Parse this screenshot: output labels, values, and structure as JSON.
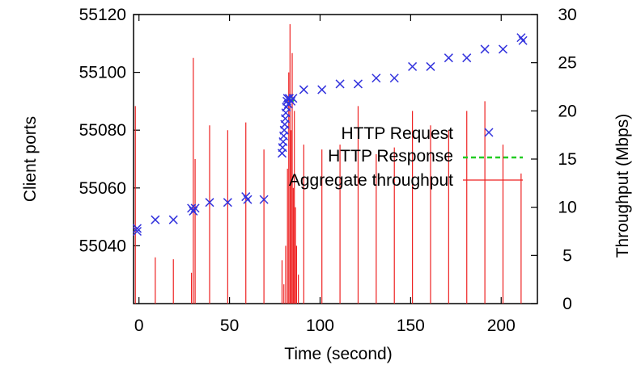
{
  "chart_data": {
    "type": "scatter+line",
    "title": "",
    "xlabel": "Time (second)",
    "ylabel_left": "Client ports",
    "ylabel_right": "Throughput (Mbps)",
    "xlim": [
      -3,
      220
    ],
    "ylim_left": [
      55020,
      55120
    ],
    "ylim_right": [
      0,
      30
    ],
    "x_ticks": [
      0,
      50,
      100,
      150,
      200
    ],
    "y_left_ticks": [
      55040,
      55060,
      55080,
      55100,
      55120
    ],
    "y_right_ticks": [
      0,
      5,
      10,
      15,
      20,
      25,
      30
    ],
    "legend_position": "top-right",
    "colors": {
      "request": "#3333dd",
      "response": "#22cc22",
      "throughput": "#ee2222"
    },
    "series": [
      {
        "name": "HTTP Request",
        "kind": "scatter",
        "axis": "left",
        "points": [
          [
            -1,
            55046
          ],
          [
            -1,
            55045
          ],
          [
            9,
            55049
          ],
          [
            19,
            55049
          ],
          [
            29,
            55053
          ],
          [
            30,
            55052
          ],
          [
            31,
            55053
          ],
          [
            39,
            55055
          ],
          [
            49,
            55055
          ],
          [
            59,
            55057
          ],
          [
            60,
            55056
          ],
          [
            69,
            55056
          ],
          [
            79,
            55072
          ],
          [
            79.3,
            55074
          ],
          [
            79.6,
            55076
          ],
          [
            79.9,
            55078
          ],
          [
            80.2,
            55080
          ],
          [
            80.5,
            55082
          ],
          [
            80.8,
            55084
          ],
          [
            81.1,
            55086
          ],
          [
            81.4,
            55088
          ],
          [
            81.7,
            55090
          ],
          [
            82,
            55091
          ],
          [
            82.5,
            55089
          ],
          [
            83,
            55091
          ],
          [
            84,
            55090
          ],
          [
            85,
            55091
          ],
          [
            91,
            55094
          ],
          [
            101,
            55094
          ],
          [
            111,
            55096
          ],
          [
            121,
            55096
          ],
          [
            131,
            55098
          ],
          [
            141,
            55098
          ],
          [
            151,
            55102
          ],
          [
            161,
            55102
          ],
          [
            171,
            55105
          ],
          [
            181,
            55105
          ],
          [
            191,
            55108
          ],
          [
            201,
            55108
          ],
          [
            211,
            55112
          ],
          [
            212,
            55111
          ]
        ]
      },
      {
        "name": "HTTP Response",
        "kind": "dashed-line",
        "axis": "left",
        "points": [
          [
            82.5,
            55089
          ],
          [
            83.5,
            55090
          ],
          [
            84.5,
            55091
          ],
          [
            85.5,
            55090
          ]
        ]
      },
      {
        "name": "Aggregate throughput",
        "kind": "spikes",
        "axis": "right",
        "points": [
          [
            -2,
            20.5
          ],
          [
            9,
            4.8
          ],
          [
            19,
            4.6
          ],
          [
            29,
            3.2
          ],
          [
            30,
            25.5
          ],
          [
            31,
            15
          ],
          [
            39,
            18.5
          ],
          [
            49,
            18
          ],
          [
            59,
            18.8
          ],
          [
            69,
            16
          ],
          [
            79,
            4.5
          ],
          [
            80,
            2
          ],
          [
            81,
            6
          ],
          [
            82,
            14
          ],
          [
            82.7,
            24
          ],
          [
            83.4,
            29
          ],
          [
            84,
            18
          ],
          [
            84.6,
            26
          ],
          [
            85.2,
            12
          ],
          [
            85.8,
            20
          ],
          [
            86.4,
            10
          ],
          [
            87,
            6
          ],
          [
            88,
            3
          ],
          [
            91,
            16.5
          ],
          [
            101,
            16
          ],
          [
            111,
            16.5
          ],
          [
            121,
            20.5
          ],
          [
            131,
            15.5
          ],
          [
            141,
            16.2
          ],
          [
            151,
            20
          ],
          [
            161,
            18.5
          ],
          [
            171,
            18
          ],
          [
            181,
            20
          ],
          [
            191,
            21
          ],
          [
            201,
            16.5
          ],
          [
            211,
            13.5
          ]
        ]
      }
    ]
  }
}
